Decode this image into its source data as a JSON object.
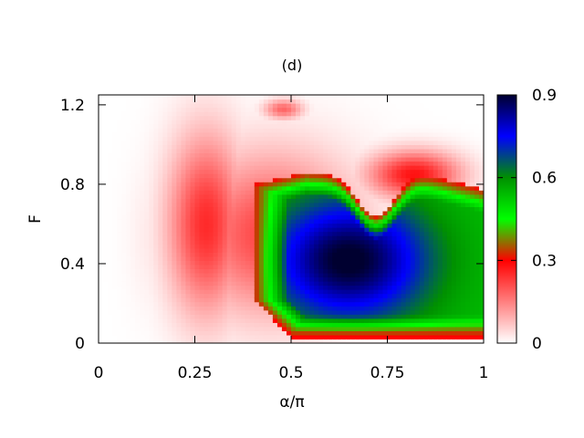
{
  "chart_data": {
    "type": "heatmap",
    "title": "(d)",
    "xlabel": "α/π",
    "ylabel": "F",
    "xlim": [
      0,
      1
    ],
    "ylim": [
      0,
      1.25
    ],
    "x_ticks": [
      {
        "value": 0,
        "label": "0"
      },
      {
        "value": 0.25,
        "label": "0.25"
      },
      {
        "value": 0.5,
        "label": "0.5"
      },
      {
        "value": 0.75,
        "label": "0.75"
      },
      {
        "value": 1,
        "label": "1"
      }
    ],
    "y_ticks": [
      {
        "value": 0,
        "label": "0"
      },
      {
        "value": 0.4,
        "label": "0.4"
      },
      {
        "value": 0.8,
        "label": "0.8"
      },
      {
        "value": 1.2,
        "label": "1.2"
      }
    ],
    "colorbar": {
      "range": [
        0,
        0.9
      ],
      "ticks": [
        {
          "value": 0,
          "label": "0"
        },
        {
          "value": 0.3,
          "label": "0.3"
        },
        {
          "value": 0.6,
          "label": "0.6"
        },
        {
          "value": 0.9,
          "label": "0.9"
        }
      ],
      "palette": [
        {
          "value": 0.0,
          "color": "#ffffff"
        },
        {
          "value": 0.3,
          "color": "#ff0000"
        },
        {
          "value": 0.45,
          "color": "#00ff00"
        },
        {
          "value": 0.6,
          "color": "#009000"
        },
        {
          "value": 0.75,
          "color": "#0000ff"
        },
        {
          "value": 0.9,
          "color": "#000030"
        }
      ]
    },
    "grid": false,
    "note_values": "Heatmap values are approximate estimates of the color field (max ≈ 0.78 near α/π≈0.65, F≈0.42)."
  }
}
